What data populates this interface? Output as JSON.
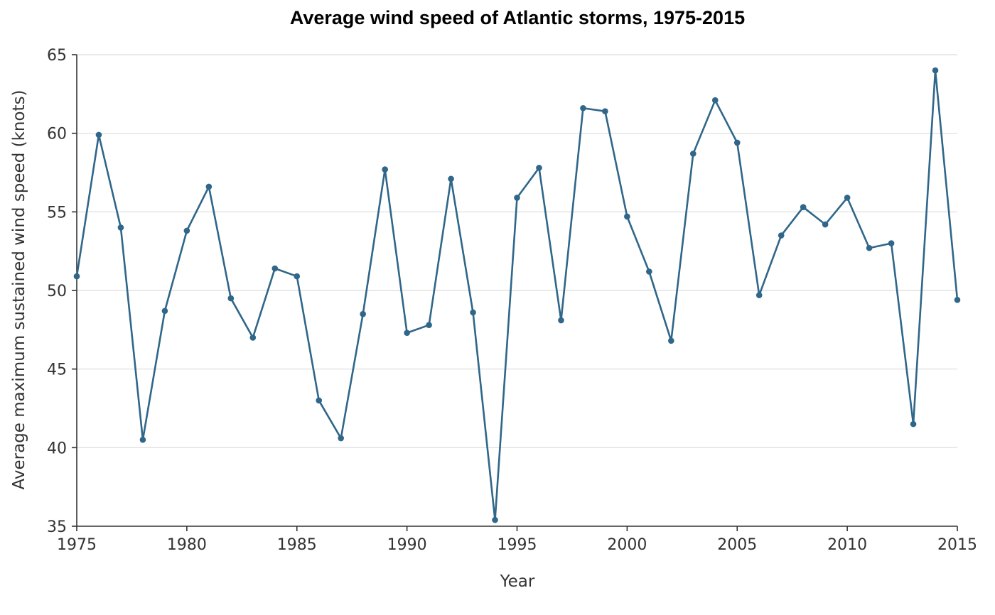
{
  "chart_data": {
    "type": "line",
    "title": "Average wind speed of Atlantic storms, 1975-2015",
    "xlabel": "Year",
    "ylabel": "Average maximum sustained wind speed (knots)",
    "xlim": [
      1975,
      2015
    ],
    "ylim": [
      35,
      65
    ],
    "xticks": [
      1975,
      1980,
      1985,
      1990,
      1995,
      2000,
      2005,
      2010,
      2015
    ],
    "yticks": [
      35,
      40,
      45,
      50,
      55,
      60,
      65
    ],
    "grid": "horizontal",
    "color": "#2f6689",
    "x": [
      1975,
      1976,
      1977,
      1978,
      1979,
      1980,
      1981,
      1982,
      1983,
      1984,
      1985,
      1986,
      1987,
      1988,
      1989,
      1990,
      1991,
      1992,
      1993,
      1994,
      1995,
      1996,
      1997,
      1998,
      1999,
      2000,
      2001,
      2002,
      2003,
      2004,
      2005,
      2006,
      2007,
      2008,
      2009,
      2010,
      2011,
      2012,
      2013,
      2014,
      2015
    ],
    "y": [
      50.9,
      59.9,
      54.0,
      40.5,
      48.7,
      53.8,
      56.6,
      49.5,
      47.0,
      51.4,
      50.9,
      43.0,
      40.6,
      48.5,
      57.7,
      47.3,
      47.8,
      57.1,
      48.6,
      35.4,
      55.9,
      57.8,
      48.1,
      61.6,
      61.4,
      54.7,
      51.2,
      46.8,
      58.7,
      62.1,
      59.4,
      49.7,
      53.5,
      55.3,
      54.2,
      55.9,
      52.7,
      53.0,
      41.5,
      64.0,
      49.4
    ]
  }
}
